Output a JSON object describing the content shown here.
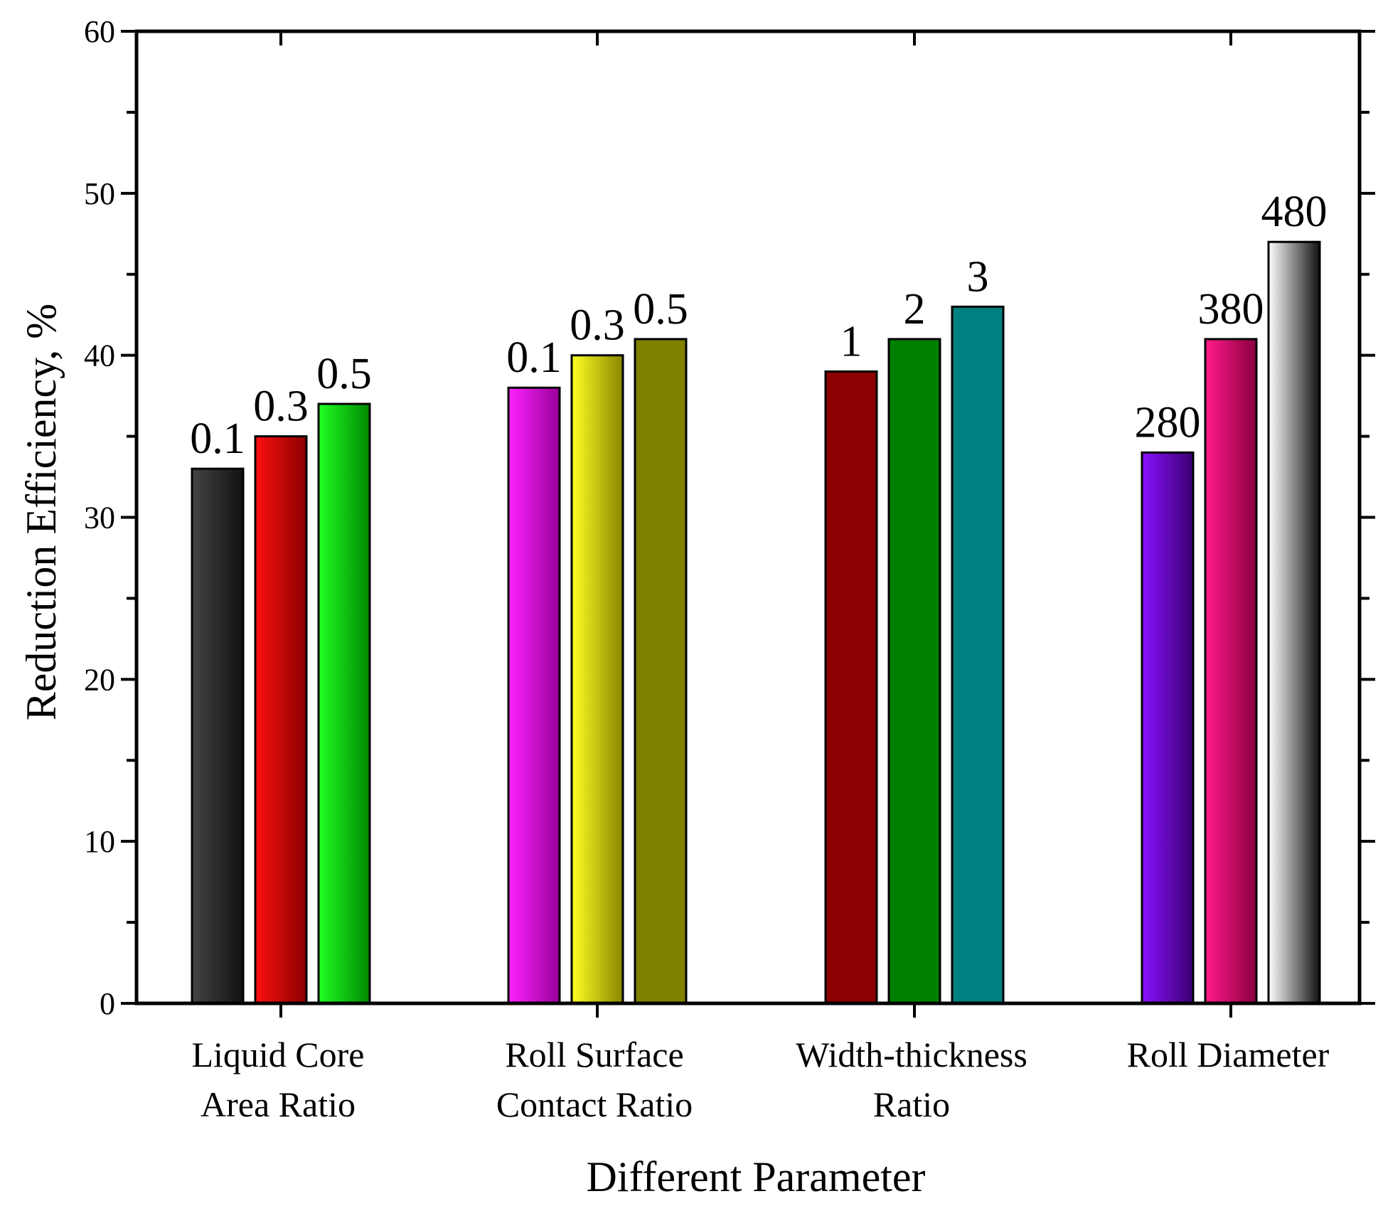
{
  "chart_data": {
    "type": "bar",
    "title": "",
    "xlabel": "Different Parameter",
    "ylabel": "Reduction Efficiency, %",
    "ylim": [
      0,
      60
    ],
    "yticks": [
      "0",
      "10",
      "20",
      "30",
      "40",
      "50",
      "60"
    ],
    "groups": [
      {
        "name_lines": [
          "Liquid Core",
          "Area Ratio"
        ],
        "bars": [
          {
            "label": "0.1",
            "value": 33,
            "color_light": "#444444",
            "color_dark": "#111111"
          },
          {
            "label": "0.3",
            "value": 35,
            "color_light": "#ff1010",
            "color_dark": "#8a0000"
          },
          {
            "label": "0.5",
            "value": 37,
            "color_light": "#22ff22",
            "color_dark": "#008800"
          }
        ]
      },
      {
        "name_lines": [
          "Roll Surface",
          "Contact Ratio"
        ],
        "bars": [
          {
            "label": "0.1",
            "value": 38,
            "color_light": "#ff22ff",
            "color_dark": "#990099"
          },
          {
            "label": "0.3",
            "value": 40,
            "color_light": "#ffff22",
            "color_dark": "#888800"
          },
          {
            "label": "0.5",
            "value": 41,
            "color_light": "#808000",
            "color_dark": "#808000"
          }
        ]
      },
      {
        "name_lines": [
          "Width-thickness",
          " Ratio"
        ],
        "bars": [
          {
            "label": "1",
            "value": 39,
            "color_light": "#8b0000",
            "color_dark": "#8b0000"
          },
          {
            "label": "2",
            "value": 41,
            "color_light": "#008000",
            "color_dark": "#008000"
          },
          {
            "label": "3",
            "value": 43,
            "color_light": "#008080",
            "color_dark": "#008080"
          }
        ]
      },
      {
        "name_lines": [
          "Roll Diameter"
        ],
        "bars": [
          {
            "label": "280",
            "value": 34,
            "color_light": "#8a11ff",
            "color_dark": "#3a0070"
          },
          {
            "label": "380",
            "value": 41,
            "color_light": "#ff1a8a",
            "color_dark": "#8a0040"
          },
          {
            "label": "480",
            "value": 47,
            "color_light": "#ffffff",
            "color_dark": "#111111"
          }
        ]
      }
    ]
  }
}
